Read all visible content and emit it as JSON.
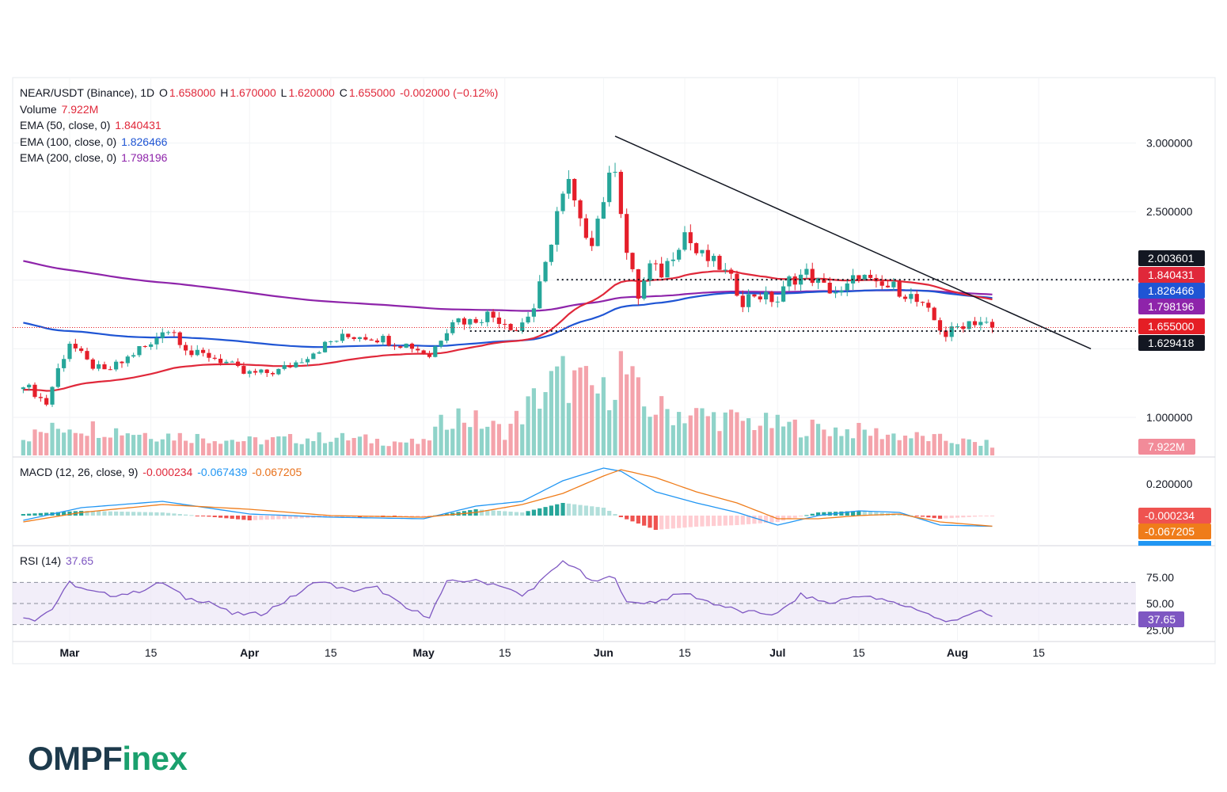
{
  "header": {
    "symbol": "NEAR/USDT (Binance), 1D",
    "o_label": "O",
    "o": "1.658000",
    "h_label": "H",
    "h": "1.670000",
    "l_label": "L",
    "l": "1.620000",
    "c_label": "C",
    "c": "1.655000",
    "change": "-0.002000 (−0.12%)"
  },
  "indicators": {
    "volume": {
      "label": "Volume",
      "value": "7.922M"
    },
    "ema50": {
      "label": "EMA (50, close, 0)",
      "value": "1.840431"
    },
    "ema100": {
      "label": "EMA (100, close, 0)",
      "value": "1.826466"
    },
    "ema200": {
      "label": "EMA (200, close, 0)",
      "value": "1.798196"
    },
    "macd": {
      "label": "MACD (12, 26, close, 9)",
      "hist": "-0.000234",
      "macd": "-0.067439",
      "signal": "-0.067205"
    },
    "rsi": {
      "label": "RSI (14)",
      "value": "37.65"
    }
  },
  "colors": {
    "up": "#26a69a",
    "down": "#ef5350",
    "ema50": "#e0283a",
    "ema100": "#1f55d4",
    "ema200": "#8e24aa",
    "macd": "#2196f3",
    "signal": "#ef7c1a",
    "rsi": "#7e57c2",
    "vol_up": "#8fd3c9",
    "vol_down": "#f4a3ab",
    "brand_dark": "#1d3a4c",
    "brand_green": "#1aa06d"
  },
  "chart_data": {
    "type": "candlestick",
    "price_axis": {
      "ticks": [
        "3.000000",
        "2.500000",
        "1.000000"
      ]
    },
    "macd_axis": {
      "ticks": [
        "0.200000"
      ]
    },
    "rsi_axis": {
      "ticks": [
        "75.00",
        "50.00",
        "25.00"
      ]
    },
    "time_axis": {
      "labels": [
        "Mar",
        "15",
        "Apr",
        "15",
        "May",
        "15",
        "Jun",
        "15",
        "Jul",
        "15",
        "Aug",
        "15"
      ]
    },
    "price_tags": [
      {
        "value": "2.003601",
        "color": "#131722"
      },
      {
        "value": "1.840431",
        "color": "#e0283a"
      },
      {
        "value": "1.826466",
        "color": "#1f55d4"
      },
      {
        "value": "1.798196",
        "color": "#8e24aa"
      },
      {
        "value": "1.655000",
        "color": "#e51e25"
      },
      {
        "value": "1.629418",
        "color": "#131722"
      }
    ],
    "volume_tag": "7.922M",
    "macd_tags": [
      {
        "value": "-0.000234",
        "color": "#ef5350"
      },
      {
        "value": "-0.067205",
        "color": "#ef7c1a"
      }
    ],
    "rsi_tag": "37.65",
    "levels": [
      2.003601,
      1.629418
    ],
    "current_price": 1.655,
    "trendline": {
      "from_date": "Jun 03",
      "from_price": 3.05,
      "to_date": "Aug 24",
      "to_price": 1.5
    },
    "close_path": [
      [
        "Feb 22",
        1.25
      ],
      [
        "Feb 26",
        1.1
      ],
      [
        "Feb 28",
        1.35
      ],
      [
        "Mar 01",
        1.55
      ],
      [
        "Mar 04",
        1.4
      ],
      [
        "Mar 07",
        1.33
      ],
      [
        "Mar 10",
        1.4
      ],
      [
        "Mar 13",
        1.5
      ],
      [
        "Mar 15",
        1.52
      ],
      [
        "Mar 17",
        1.65
      ],
      [
        "Mar 19",
        1.62
      ],
      [
        "Mar 22",
        1.46
      ],
      [
        "Mar 25",
        1.45
      ],
      [
        "Mar 28",
        1.4
      ],
      [
        "Mar 31",
        1.32
      ],
      [
        "Apr 03",
        1.32
      ],
      [
        "Apr 06",
        1.34
      ],
      [
        "Apr 09",
        1.4
      ],
      [
        "Apr 12",
        1.48
      ],
      [
        "Apr 15",
        1.55
      ],
      [
        "Apr 17",
        1.58
      ],
      [
        "Apr 20",
        1.6
      ],
      [
        "Apr 23",
        1.58
      ],
      [
        "Apr 26",
        1.55
      ],
      [
        "Apr 29",
        1.52
      ],
      [
        "May 02",
        1.45
      ],
      [
        "May 06",
        1.72
      ],
      [
        "May 09",
        1.7
      ],
      [
        "May 12",
        1.75
      ],
      [
        "May 15",
        1.7
      ],
      [
        "May 17",
        1.64
      ],
      [
        "May 20",
        1.8
      ],
      [
        "May 22",
        2.1
      ],
      [
        "May 24",
        2.5
      ],
      [
        "May 26",
        2.7
      ],
      [
        "May 28",
        2.4
      ],
      [
        "May 30",
        2.3
      ],
      [
        "Jun 01",
        2.6
      ],
      [
        "Jun 03",
        2.85
      ],
      [
        "Jun 05",
        2.2
      ],
      [
        "Jun 07",
        1.88
      ],
      [
        "Jun 09",
        2.1
      ],
      [
        "Jun 11",
        2.05
      ],
      [
        "Jun 13",
        2.2
      ],
      [
        "Jun 15",
        2.35
      ],
      [
        "Jun 17",
        2.2
      ],
      [
        "Jun 19",
        2.15
      ],
      [
        "Jun 21",
        2.1
      ],
      [
        "Jun 23",
        2.0
      ],
      [
        "Jun 25",
        1.85
      ],
      [
        "Jun 27",
        1.9
      ],
      [
        "Jul 01",
        1.85
      ],
      [
        "Jul 03",
        2.0
      ],
      [
        "Jul 06",
        2.05
      ],
      [
        "Jul 09",
        1.95
      ],
      [
        "Jul 12",
        1.9
      ],
      [
        "Jul 15",
        2.05
      ],
      [
        "Jul 18",
        1.95
      ],
      [
        "Jul 21",
        1.95
      ],
      [
        "Jul 24",
        1.88
      ],
      [
        "Jul 27",
        1.76
      ],
      [
        "Jul 30",
        1.6
      ],
      [
        "Aug 01",
        1.66
      ],
      [
        "Aug 03",
        1.7
      ],
      [
        "Aug 05",
        1.7
      ],
      [
        "Aug 07",
        1.655
      ]
    ],
    "volume_profile": [
      [
        "Feb 22",
        1.5
      ],
      [
        "Mar 01",
        2.5
      ],
      [
        "Mar 15",
        1.8
      ],
      [
        "Apr 01",
        1.2
      ],
      [
        "Apr 15",
        1.5
      ],
      [
        "May 01",
        1.0
      ],
      [
        "May 06",
        3.5
      ],
      [
        "May 15",
        2.0
      ],
      [
        "May 22",
        5.5
      ],
      [
        "May 25",
        6.5
      ],
      [
        "Jun 01",
        5.0
      ],
      [
        "Jun 04",
        7.5
      ],
      [
        "Jun 08",
        4.0
      ],
      [
        "Jun 15",
        3.5
      ],
      [
        "Jul 01",
        2.5
      ],
      [
        "Jul 15",
        2.0
      ],
      [
        "Aug 07",
        0.9
      ]
    ],
    "macd_series": [
      [
        "Feb 22",
        -0.03,
        -0.04
      ],
      [
        "Mar 03",
        0.05,
        0.02
      ],
      [
        "Mar 17",
        0.09,
        0.07
      ],
      [
        "Apr 01",
        0.01,
        0.04
      ],
      [
        "Apr 15",
        -0.01,
        0.0
      ],
      [
        "May 01",
        -0.02,
        -0.01
      ],
      [
        "May 10",
        0.06,
        0.02
      ],
      [
        "May 18",
        0.09,
        0.07
      ],
      [
        "May 25",
        0.22,
        0.14
      ],
      [
        "Jun 01",
        0.3,
        0.25
      ],
      [
        "Jun 04",
        0.28,
        0.29
      ],
      [
        "Jun 10",
        0.15,
        0.24
      ],
      [
        "Jun 17",
        0.08,
        0.15
      ],
      [
        "Jun 24",
        0.02,
        0.08
      ],
      [
        "Jul 01",
        -0.06,
        -0.02
      ],
      [
        "Jul 08",
        0.0,
        -0.02
      ],
      [
        "Jul 15",
        0.03,
        0.0
      ],
      [
        "Jul 22",
        0.02,
        0.01
      ],
      [
        "Jul 29",
        -0.06,
        -0.04
      ],
      [
        "Aug 07",
        -0.067439,
        -0.067205
      ]
    ],
    "rsi_series": [
      [
        "Feb 22",
        38
      ],
      [
        "Feb 24",
        35
      ],
      [
        "Feb 27",
        45
      ],
      [
        "Mar 01",
        70
      ],
      [
        "Mar 04",
        62
      ],
      [
        "Mar 08",
        58
      ],
      [
        "Mar 12",
        60
      ],
      [
        "Mar 17",
        70
      ],
      [
        "Mar 21",
        55
      ],
      [
        "Mar 25",
        52
      ],
      [
        "Mar 29",
        40
      ],
      [
        "Apr 03",
        40
      ],
      [
        "Apr 08",
        55
      ],
      [
        "Apr 13",
        72
      ],
      [
        "Apr 18",
        62
      ],
      [
        "Apr 23",
        65
      ],
      [
        "Apr 28",
        45
      ],
      [
        "May 02",
        38
      ],
      [
        "May 05",
        70
      ],
      [
        "May 09",
        72
      ],
      [
        "May 14",
        68
      ],
      [
        "May 18",
        57
      ],
      [
        "May 22",
        75
      ],
      [
        "May 25",
        90
      ],
      [
        "May 27",
        85
      ],
      [
        "May 30",
        70
      ],
      [
        "Jun 03",
        76
      ],
      [
        "Jun 05",
        50
      ],
      [
        "Jun 10",
        52
      ],
      [
        "Jun 15",
        60
      ],
      [
        "Jun 20",
        50
      ],
      [
        "Jun 25",
        42
      ],
      [
        "Jul 01",
        40
      ],
      [
        "Jul 05",
        58
      ],
      [
        "Jul 10",
        50
      ],
      [
        "Jul 15",
        58
      ],
      [
        "Jul 20",
        52
      ],
      [
        "Jul 25",
        45
      ],
      [
        "Jul 30",
        32
      ],
      [
        "Aug 03",
        40
      ],
      [
        "Aug 05",
        42
      ],
      [
        "Aug 07",
        37.65
      ]
    ]
  },
  "brand": {
    "part1": "OMPF",
    "part2": "inex"
  }
}
